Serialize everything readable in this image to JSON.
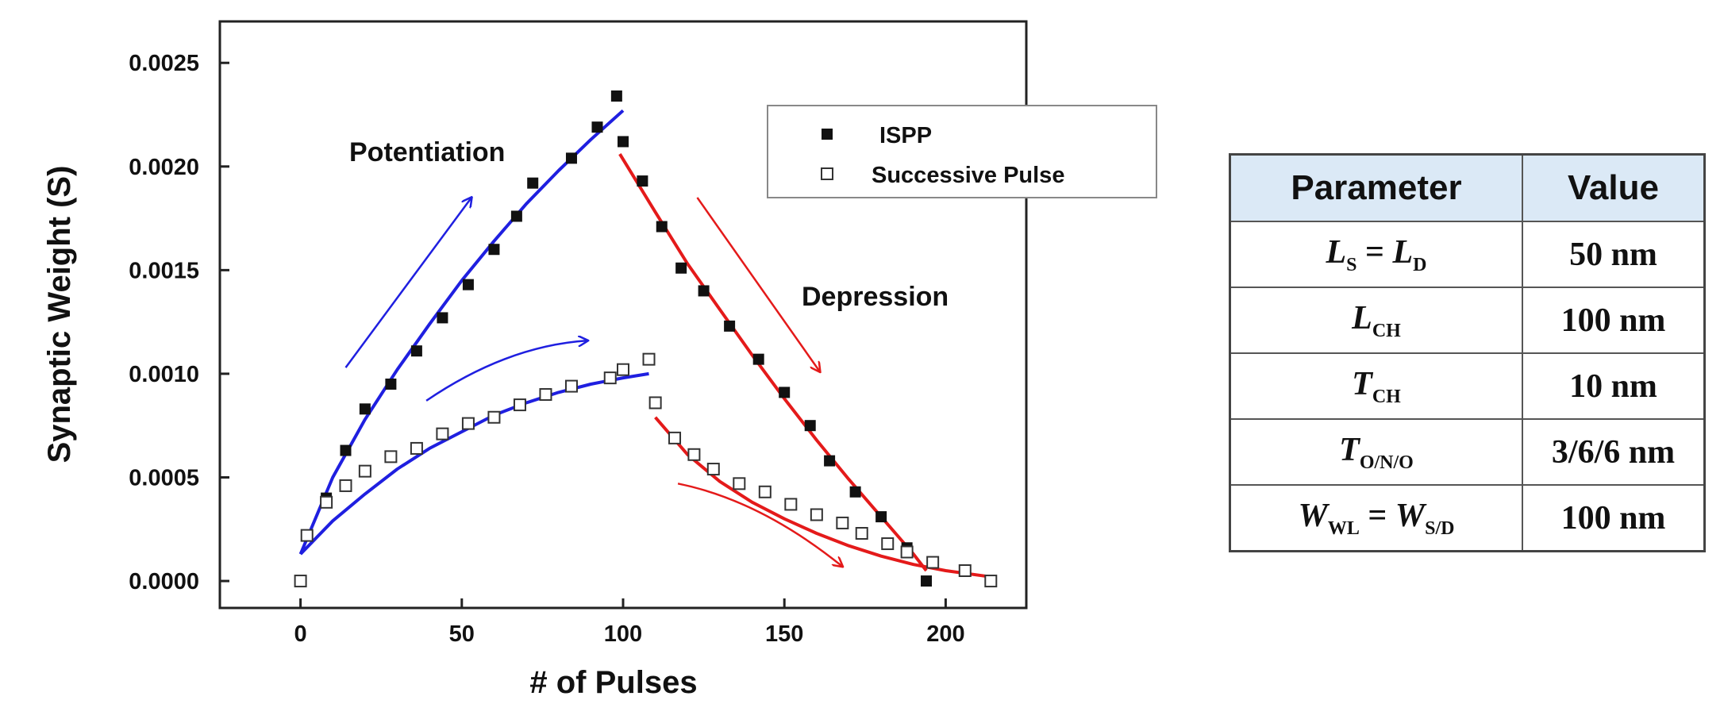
{
  "chart_data": {
    "type": "scatter",
    "xlabel": "# of Pulses",
    "ylabel": "Synaptic Weight (S)",
    "xlim": [
      -25,
      225
    ],
    "ylim": [
      -0.00013,
      0.0027
    ],
    "xticks": [
      0,
      50,
      100,
      150,
      200
    ],
    "xtick_labels": [
      "0",
      "50",
      "100",
      "150",
      "200"
    ],
    "yticks": [
      0.0,
      0.0005,
      0.001,
      0.0015,
      0.002,
      0.0025
    ],
    "ytick_labels": [
      "0.0000",
      "0.0005",
      "0.0010",
      "0.0015",
      "0.0020",
      "0.0025"
    ],
    "legend": {
      "position": "top-right",
      "entries": [
        {
          "label": "ISPP",
          "marker": "filled-square"
        },
        {
          "label": "Successive Pulse",
          "marker": "open-square"
        }
      ]
    },
    "annotations": [
      "Potentiation",
      "Depression"
    ],
    "series": [
      {
        "name": "ISPP",
        "marker": "filled-square",
        "x": [
          8,
          14,
          20,
          28,
          36,
          44,
          52,
          60,
          67,
          72,
          84,
          92,
          98,
          100,
          106,
          112,
          118,
          125,
          133,
          142,
          150,
          158,
          164,
          172,
          180,
          188,
          194
        ],
        "y": [
          0.0004,
          0.00063,
          0.00083,
          0.00095,
          0.00111,
          0.00127,
          0.00143,
          0.0016,
          0.00176,
          0.00192,
          0.00204,
          0.00219,
          0.00234,
          0.00212,
          0.00193,
          0.00171,
          0.00151,
          0.0014,
          0.00123,
          0.00107,
          0.00091,
          0.00075,
          0.00058,
          0.00043,
          0.00031,
          0.00016,
          0.0
        ]
      },
      {
        "name": "Successive Pulse",
        "marker": "open-square",
        "x": [
          0,
          2,
          8,
          14,
          20,
          28,
          36,
          44,
          52,
          60,
          68,
          76,
          84,
          96,
          100,
          108,
          110,
          116,
          122,
          128,
          136,
          144,
          152,
          160,
          168,
          174,
          182,
          188,
          196,
          206,
          214
        ],
        "y": [
          0.0,
          0.00022,
          0.00038,
          0.00046,
          0.00053,
          0.0006,
          0.00064,
          0.00071,
          0.00076,
          0.00079,
          0.00085,
          0.0009,
          0.00094,
          0.00098,
          0.00102,
          0.00107,
          0.00086,
          0.00069,
          0.00061,
          0.00054,
          0.00047,
          0.00043,
          0.00037,
          0.00032,
          0.00028,
          0.00023,
          0.00018,
          0.00014,
          9e-05,
          5e-05,
          0.0
        ]
      }
    ],
    "fits": [
      {
        "name": "ISPP potentiation fit",
        "color": "#1f1fe0",
        "x": [
          0,
          10,
          20,
          30,
          40,
          50,
          60,
          70,
          80,
          90,
          100
        ],
        "y": [
          0.00013,
          0.0005,
          0.00078,
          0.00102,
          0.00124,
          0.00145,
          0.00164,
          0.00182,
          0.00198,
          0.00213,
          0.00227
        ]
      },
      {
        "name": "ISPP depression fit",
        "color": "#e41a1a",
        "x": [
          99,
          110,
          120,
          130,
          140,
          150,
          160,
          170,
          180,
          190,
          194
        ],
        "y": [
          0.00206,
          0.00178,
          0.00153,
          0.00131,
          0.00109,
          0.00088,
          0.00068,
          0.00049,
          0.00031,
          0.00013,
          5e-05
        ]
      },
      {
        "name": "Successive potentiation fit",
        "color": "#1f1fe0",
        "x": [
          0,
          10,
          20,
          30,
          40,
          50,
          60,
          70,
          80,
          90,
          100,
          108
        ],
        "y": [
          0.00013,
          0.00029,
          0.00042,
          0.00054,
          0.00064,
          0.00072,
          0.0008,
          0.00086,
          0.00091,
          0.00095,
          0.00098,
          0.001
        ]
      },
      {
        "name": "Successive depression fit",
        "color": "#e41a1a",
        "x": [
          110,
          120,
          130,
          140,
          150,
          160,
          170,
          180,
          190,
          200,
          214
        ],
        "y": [
          0.00079,
          0.00061,
          0.00048,
          0.00038,
          0.0003,
          0.00023,
          0.00017,
          0.00012,
          8e-05,
          5e-05,
          2e-05
        ]
      }
    ],
    "arrows": [
      {
        "name": "potentiation-ispp-arrow",
        "color": "#1f1fe0",
        "from": [
          14,
          0.00103
        ],
        "to": [
          53,
          0.00185
        ],
        "curve": 0
      },
      {
        "name": "potentiation-successive-arrow",
        "color": "#1f1fe0",
        "from": [
          39,
          0.00087
        ],
        "to": [
          89,
          0.00116
        ],
        "curve": -0.00012
      },
      {
        "name": "depression-ispp-arrow",
        "color": "#e41a1a",
        "from": [
          123,
          0.00185
        ],
        "to": [
          161,
          0.00101
        ],
        "curve": 0
      },
      {
        "name": "depression-successive-arrow",
        "color": "#e41a1a",
        "from": [
          117,
          0.00047
        ],
        "to": [
          168,
          7e-05
        ],
        "curve": -0.00012
      }
    ]
  },
  "table": {
    "header": {
      "parameter": "Parameter",
      "value": "Value"
    },
    "rows": [
      {
        "p_a": "L",
        "p_a_sub": "S",
        "p_op": " = ",
        "p_b": "L",
        "p_b_sub": "D",
        "value": "50 nm"
      },
      {
        "p_a": "L",
        "p_a_sub": "CH",
        "value": "100 nm"
      },
      {
        "p_a": "T",
        "p_a_sub": "CH",
        "value": "10 nm"
      },
      {
        "p_a": "T",
        "p_a_sub": "O/N/O",
        "value": "3/6/6 nm"
      },
      {
        "p_a": "W",
        "p_a_sub": "WL",
        "p_op": " = ",
        "p_b": "W",
        "p_b_sub": "S/D",
        "value": "100 nm"
      }
    ]
  }
}
